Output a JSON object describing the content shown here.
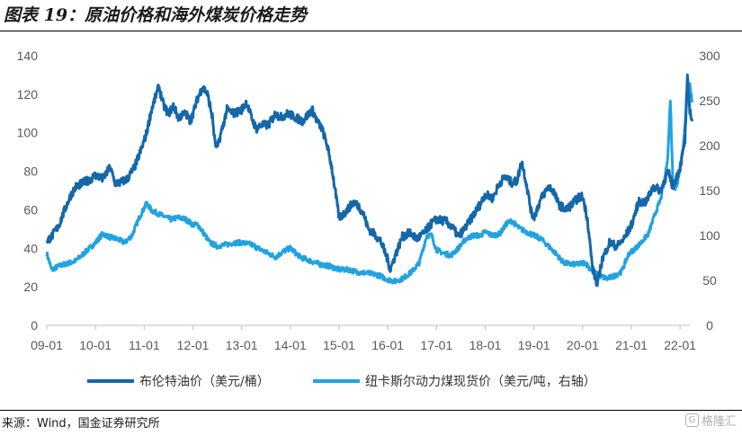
{
  "title": "图表 19：原油价格和海外煤炭价格走势",
  "source": "来源：Wind，国金证券研究所",
  "watermark": {
    "text": "格隆汇",
    "logo": "G"
  },
  "colors": {
    "brent": "#1467a8",
    "coal": "#21a3e0",
    "axis": "#bfbfbf"
  },
  "chart_data": {
    "type": "line",
    "title": "原油价格和海外煤炭价格走势",
    "x_ticks": [
      "09-01",
      "10-01",
      "11-01",
      "12-01",
      "13-01",
      "14-01",
      "15-01",
      "16-01",
      "17-01",
      "18-01",
      "19-01",
      "20-01",
      "21-01",
      "22-01"
    ],
    "y_left": {
      "range": [
        0,
        140
      ],
      "ticks": [
        "0",
        "20",
        "40",
        "60",
        "80",
        "100",
        "120",
        "140"
      ]
    },
    "y_right": {
      "range": [
        0,
        300
      ],
      "ticks": [
        "0",
        "50",
        "100",
        "150",
        "200",
        "250",
        "300"
      ]
    },
    "legend_position": "bottom",
    "series": [
      {
        "name": "布伦特油价（美元/桶）",
        "axis": "left",
        "points": [
          [
            2009.0,
            44
          ],
          [
            2009.1,
            46
          ],
          [
            2009.25,
            52
          ],
          [
            2009.4,
            62
          ],
          [
            2009.5,
            68
          ],
          [
            2009.6,
            72
          ],
          [
            2009.75,
            74
          ],
          [
            2009.9,
            76
          ],
          [
            2010.0,
            78
          ],
          [
            2010.15,
            76
          ],
          [
            2010.3,
            82
          ],
          [
            2010.4,
            74
          ],
          [
            2010.5,
            74
          ],
          [
            2010.65,
            76
          ],
          [
            2010.8,
            82
          ],
          [
            2010.95,
            92
          ],
          [
            2011.05,
            100
          ],
          [
            2011.15,
            112
          ],
          [
            2011.3,
            124
          ],
          [
            2011.4,
            114
          ],
          [
            2011.5,
            110
          ],
          [
            2011.6,
            114
          ],
          [
            2011.7,
            108
          ],
          [
            2011.85,
            110
          ],
          [
            2011.95,
            106
          ],
          [
            2012.0,
            110
          ],
          [
            2012.1,
            118
          ],
          [
            2012.2,
            124
          ],
          [
            2012.3,
            120
          ],
          [
            2012.4,
            108
          ],
          [
            2012.45,
            95
          ],
          [
            2012.5,
            92
          ],
          [
            2012.6,
            102
          ],
          [
            2012.7,
            112
          ],
          [
            2012.85,
            110
          ],
          [
            2013.0,
            112
          ],
          [
            2013.1,
            116
          ],
          [
            2013.2,
            108
          ],
          [
            2013.3,
            102
          ],
          [
            2013.4,
            104
          ],
          [
            2013.55,
            104
          ],
          [
            2013.7,
            110
          ],
          [
            2013.8,
            108
          ],
          [
            2013.95,
            110
          ],
          [
            2014.1,
            108
          ],
          [
            2014.25,
            106
          ],
          [
            2014.45,
            112
          ],
          [
            2014.55,
            106
          ],
          [
            2014.65,
            102
          ],
          [
            2014.75,
            94
          ],
          [
            2014.85,
            82
          ],
          [
            2014.92,
            70
          ],
          [
            2015.0,
            56
          ],
          [
            2015.1,
            58
          ],
          [
            2015.3,
            64
          ],
          [
            2015.4,
            62
          ],
          [
            2015.5,
            58
          ],
          [
            2015.6,
            50
          ],
          [
            2015.7,
            48
          ],
          [
            2015.85,
            44
          ],
          [
            2016.0,
            34
          ],
          [
            2016.05,
            29
          ],
          [
            2016.15,
            36
          ],
          [
            2016.3,
            46
          ],
          [
            2016.45,
            48
          ],
          [
            2016.6,
            45
          ],
          [
            2016.75,
            48
          ],
          [
            2016.9,
            53
          ],
          [
            2017.0,
            55
          ],
          [
            2017.2,
            54
          ],
          [
            2017.35,
            50
          ],
          [
            2017.45,
            46
          ],
          [
            2017.6,
            51
          ],
          [
            2017.75,
            57
          ],
          [
            2017.9,
            63
          ],
          [
            2018.0,
            68
          ],
          [
            2018.15,
            66
          ],
          [
            2018.3,
            74
          ],
          [
            2018.4,
            77
          ],
          [
            2018.55,
            74
          ],
          [
            2018.65,
            75
          ],
          [
            2018.75,
            85
          ],
          [
            2018.85,
            73
          ],
          [
            2018.95,
            58
          ],
          [
            2019.0,
            56
          ],
          [
            2019.15,
            66
          ],
          [
            2019.3,
            72
          ],
          [
            2019.4,
            70
          ],
          [
            2019.5,
            63
          ],
          [
            2019.65,
            60
          ],
          [
            2019.75,
            62
          ],
          [
            2019.9,
            66
          ],
          [
            2020.0,
            67
          ],
          [
            2020.1,
            55
          ],
          [
            2020.2,
            30
          ],
          [
            2020.3,
            21
          ],
          [
            2020.4,
            34
          ],
          [
            2020.55,
            43
          ],
          [
            2020.7,
            41
          ],
          [
            2020.85,
            45
          ],
          [
            2021.0,
            52
          ],
          [
            2021.15,
            64
          ],
          [
            2021.3,
            64
          ],
          [
            2021.45,
            72
          ],
          [
            2021.6,
            70
          ],
          [
            2021.75,
            80
          ],
          [
            2021.85,
            72
          ],
          [
            2022.0,
            82
          ],
          [
            2022.1,
            96
          ],
          [
            2022.15,
            128
          ],
          [
            2022.2,
            112
          ],
          [
            2022.25,
            106
          ]
        ]
      },
      {
        "name": "纽卡斯尔动力煤现货价（美元/吨，右轴）",
        "axis": "right",
        "points": [
          [
            2009.0,
            80
          ],
          [
            2009.1,
            62
          ],
          [
            2009.3,
            67
          ],
          [
            2009.5,
            70
          ],
          [
            2009.6,
            72
          ],
          [
            2009.8,
            82
          ],
          [
            2010.0,
            92
          ],
          [
            2010.15,
            102
          ],
          [
            2010.3,
            98
          ],
          [
            2010.45,
            96
          ],
          [
            2010.6,
            92
          ],
          [
            2010.75,
            100
          ],
          [
            2010.9,
            120
          ],
          [
            2011.05,
            136
          ],
          [
            2011.15,
            128
          ],
          [
            2011.3,
            124
          ],
          [
            2011.45,
            120
          ],
          [
            2011.55,
            118
          ],
          [
            2011.7,
            120
          ],
          [
            2011.85,
            118
          ],
          [
            2012.0,
            112
          ],
          [
            2012.1,
            112
          ],
          [
            2012.2,
            104
          ],
          [
            2012.35,
            92
          ],
          [
            2012.5,
            88
          ],
          [
            2012.7,
            90
          ],
          [
            2012.85,
            92
          ],
          [
            2013.0,
            92
          ],
          [
            2013.2,
            90
          ],
          [
            2013.4,
            84
          ],
          [
            2013.55,
            80
          ],
          [
            2013.7,
            76
          ],
          [
            2013.85,
            82
          ],
          [
            2014.0,
            86
          ],
          [
            2014.2,
            76
          ],
          [
            2014.4,
            72
          ],
          [
            2014.6,
            68
          ],
          [
            2014.8,
            66
          ],
          [
            2015.0,
            62
          ],
          [
            2015.2,
            62
          ],
          [
            2015.4,
            59
          ],
          [
            2015.6,
            58
          ],
          [
            2015.8,
            56
          ],
          [
            2016.0,
            51
          ],
          [
            2016.15,
            49
          ],
          [
            2016.3,
            52
          ],
          [
            2016.5,
            60
          ],
          [
            2016.65,
            70
          ],
          [
            2016.8,
            100
          ],
          [
            2016.9,
            100
          ],
          [
            2017.0,
            84
          ],
          [
            2017.15,
            80
          ],
          [
            2017.3,
            78
          ],
          [
            2017.45,
            86
          ],
          [
            2017.6,
            96
          ],
          [
            2017.75,
            100
          ],
          [
            2017.9,
            100
          ],
          [
            2018.0,
            104
          ],
          [
            2018.15,
            100
          ],
          [
            2018.3,
            102
          ],
          [
            2018.45,
            114
          ],
          [
            2018.55,
            116
          ],
          [
            2018.7,
            108
          ],
          [
            2018.85,
            104
          ],
          [
            2019.0,
            100
          ],
          [
            2019.15,
            96
          ],
          [
            2019.3,
            88
          ],
          [
            2019.45,
            80
          ],
          [
            2019.6,
            70
          ],
          [
            2019.75,
            68
          ],
          [
            2019.9,
            68
          ],
          [
            2020.05,
            70
          ],
          [
            2020.2,
            60
          ],
          [
            2020.35,
            55
          ],
          [
            2020.5,
            52
          ],
          [
            2020.65,
            55
          ],
          [
            2020.8,
            60
          ],
          [
            2020.95,
            80
          ],
          [
            2021.05,
            84
          ],
          [
            2021.2,
            92
          ],
          [
            2021.35,
            102
          ],
          [
            2021.5,
            126
          ],
          [
            2021.6,
            140
          ],
          [
            2021.7,
            168
          ],
          [
            2021.75,
            190
          ],
          [
            2021.8,
            252
          ],
          [
            2021.85,
            162
          ],
          [
            2021.9,
            150
          ],
          [
            2021.95,
            160
          ],
          [
            2022.0,
            178
          ],
          [
            2022.05,
            192
          ],
          [
            2022.1,
            220
          ],
          [
            2022.15,
            262
          ],
          [
            2022.2,
            268
          ],
          [
            2022.25,
            248
          ]
        ]
      }
    ]
  }
}
